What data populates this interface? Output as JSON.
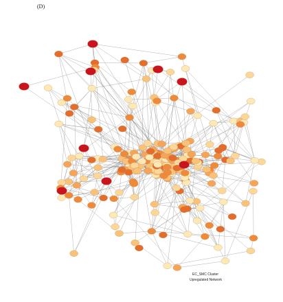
{
  "panel_label": "(D)",
  "caption": {
    "line1": "EC_SMC Cluster",
    "line2": "Upregulated Network"
  }
}
